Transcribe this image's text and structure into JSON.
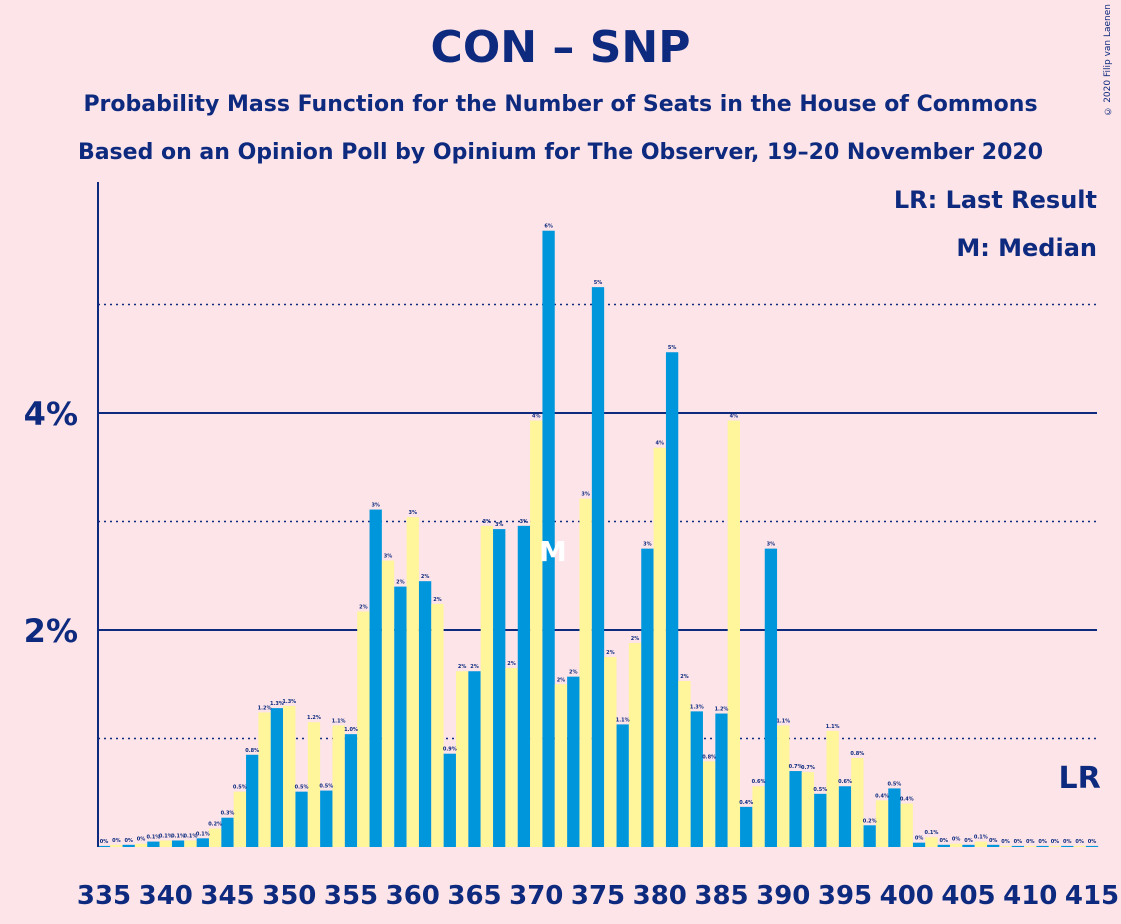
{
  "title": "CON – SNP",
  "subtitle_1": "Probability Mass Function for the Number of Seats in the House of Commons",
  "subtitle_2": "Based on an Opinion Poll by Opinium for The Observer, 19–20 November 2020",
  "copyright": "© 2020 Filip van Laenen",
  "legend": {
    "lr": "LR: Last Result",
    "m": "M: Median"
  },
  "colors": {
    "background": "#fce4e8",
    "blue": "#0d2a7f",
    "bar_blue": "#0096dc",
    "bar_yellow": "#fff59a"
  },
  "chart_data": {
    "type": "bar",
    "ylim": [
      0,
      6
    ],
    "y_ticks_labeled": [
      {
        "value": 2,
        "label": "2%"
      },
      {
        "value": 4,
        "label": "4%"
      }
    ],
    "y_gridlines_solid": [
      2,
      4
    ],
    "y_gridlines_dotted": [
      1,
      3,
      5
    ],
    "x_tick_labels": [
      "335",
      "340",
      "345",
      "350",
      "355",
      "360",
      "365",
      "370",
      "375",
      "380",
      "385",
      "390",
      "395",
      "400",
      "405",
      "410",
      "415"
    ],
    "median_marker": {
      "seat": 372,
      "label": "M"
    },
    "last_result_marker": {
      "seat": 414,
      "label": "LR"
    },
    "seats": [
      335,
      336,
      337,
      338,
      339,
      340,
      341,
      342,
      343,
      344,
      345,
      346,
      347,
      348,
      349,
      350,
      351,
      352,
      353,
      354,
      355,
      356,
      357,
      358,
      359,
      360,
      361,
      362,
      363,
      364,
      365,
      366,
      367,
      368,
      369,
      370,
      371,
      372,
      373,
      374,
      375,
      376,
      377,
      378,
      379,
      380,
      381,
      382,
      383,
      384,
      385,
      386,
      387,
      388,
      389,
      390,
      391,
      392,
      393,
      394,
      395,
      396,
      397,
      398,
      399,
      400,
      401,
      402,
      403,
      404,
      405,
      406,
      407,
      408,
      409,
      410,
      411,
      412,
      413,
      414,
      415
    ],
    "values": [
      0.01,
      0.02,
      0.02,
      0.03,
      0.05,
      0.06,
      0.06,
      0.06,
      0.08,
      0.17,
      0.27,
      0.51,
      0.85,
      1.24,
      1.28,
      1.3,
      0.51,
      1.15,
      0.52,
      1.12,
      1.04,
      2.17,
      3.11,
      2.64,
      2.4,
      3.04,
      2.45,
      2.24,
      0.86,
      1.62,
      1.62,
      2.96,
      2.93,
      1.65,
      2.96,
      3.93,
      5.68,
      1.5,
      1.57,
      3.21,
      5.16,
      1.75,
      1.13,
      1.88,
      2.75,
      3.68,
      4.56,
      1.53,
      1.25,
      0.79,
      1.23,
      3.93,
      0.37,
      0.56,
      2.75,
      1.12,
      0.7,
      0.69,
      0.49,
      1.07,
      0.56,
      0.82,
      0.2,
      0.43,
      0.54,
      0.4,
      0.04,
      0.09,
      0.02,
      0.03,
      0.02,
      0.05,
      0.02,
      0.01,
      0.01,
      0.01,
      0.01,
      0.01,
      0.01,
      0.01,
      0.01
    ],
    "labels": [
      "0%",
      "0%",
      "0%",
      "0%",
      "0.1%",
      "0.1%",
      "0.1%",
      "0.1%",
      "0.1%",
      "0.2%",
      "0.3%",
      "0.5%",
      "0.8%",
      "1.2%",
      "1.3%",
      "1.3%",
      "0.5%",
      "1.2%",
      "0.5%",
      "1.1%",
      "1.0%",
      "2%",
      "3%",
      "3%",
      "2%",
      "3%",
      "2%",
      "2%",
      "0.9%",
      "2%",
      "2%",
      "3%",
      "3%",
      "2%",
      "3%",
      "4%",
      "6%",
      "2%",
      "2%",
      "3%",
      "5%",
      "2%",
      "1.1%",
      "2%",
      "3%",
      "4%",
      "5%",
      "2%",
      "1.3%",
      "0.8%",
      "1.2%",
      "4%",
      "0.4%",
      "0.6%",
      "3%",
      "1.1%",
      "0.7%",
      "0.7%",
      "0.5%",
      "1.1%",
      "0.6%",
      "0.8%",
      "0.2%",
      "0.4%",
      "0.5%",
      "0.4%",
      "0%",
      "0.1%",
      "0%",
      "0%",
      "0%",
      "0.1%",
      "0%",
      "0%",
      "0%",
      "0%",
      "0%",
      "0%",
      "0%",
      "0%",
      "0%"
    ]
  }
}
